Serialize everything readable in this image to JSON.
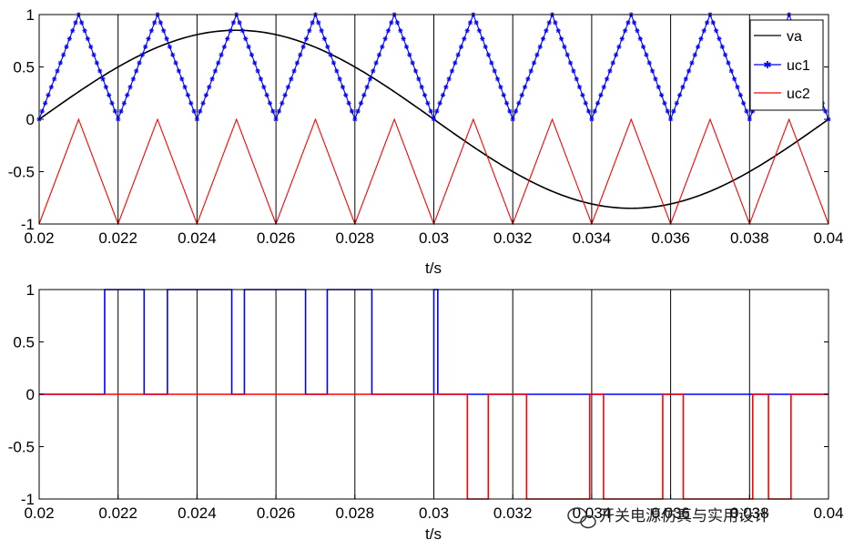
{
  "chart_data": [
    {
      "type": "line",
      "xlabel": "t/s",
      "xlim": [
        0.02,
        0.04
      ],
      "ylim": [
        -1,
        1
      ],
      "xticks": [
        "0.02",
        "0.022",
        "0.024",
        "0.026",
        "0.028",
        "0.03",
        "0.032",
        "0.034",
        "0.036",
        "0.038",
        "0.04"
      ],
      "yticks": [
        "1",
        "0.5",
        "0",
        "-0.5",
        "-1"
      ],
      "grid": "vertical lines at each x tick",
      "legend": {
        "placement": "top-right",
        "entries": [
          "va",
          "uc1",
          "uc2"
        ]
      },
      "series": [
        {
          "name": "va",
          "color": "#000000",
          "kind": "sine",
          "amplitude": 0.85,
          "period": 0.02,
          "t0": 0.02
        },
        {
          "name": "uc1",
          "color": "#0000ff",
          "kind": "triangle",
          "low": 0,
          "high": 1,
          "period": 0.002,
          "t0": 0.02,
          "marker": "star"
        },
        {
          "name": "uc2",
          "color": "#ff0000",
          "kind": "triangle",
          "low": -1,
          "high": 0,
          "period": 0.002,
          "t0": 0.02
        }
      ]
    },
    {
      "type": "line",
      "xlabel": "t/s",
      "xlim": [
        0.02,
        0.04
      ],
      "ylim": [
        -1,
        1
      ],
      "xticks": [
        "0.02",
        "0.022",
        "0.024",
        "0.026",
        "0.028",
        "0.03",
        "0.032",
        "0.034",
        "0.036",
        "0.038",
        "0.04"
      ],
      "yticks": [
        "1",
        "0.5",
        "0",
        "-0.5",
        "-1"
      ],
      "grid": "vertical lines at each x tick",
      "series": [
        {
          "color": "#0000ff",
          "kind": "pulses",
          "level": 1,
          "base": 0,
          "intervals": [
            [
              0.02166,
              0.02266
            ],
            [
              0.02325,
              0.02488
            ],
            [
              0.0252,
              0.02675
            ],
            [
              0.0273,
              0.02843
            ],
            [
              0.03,
              0.0301
            ]
          ]
        },
        {
          "color": "#ff0000",
          "kind": "pulses",
          "level": -1,
          "base": 0,
          "intervals": [
            [
              0.03085,
              0.03138
            ],
            [
              0.03235,
              0.03395
            ],
            [
              0.0343,
              0.0358
            ],
            [
              0.03632,
              0.03808
            ],
            [
              0.03848,
              0.03905
            ]
          ]
        }
      ]
    }
  ],
  "watermark": "开关电源仿真与实用设计"
}
